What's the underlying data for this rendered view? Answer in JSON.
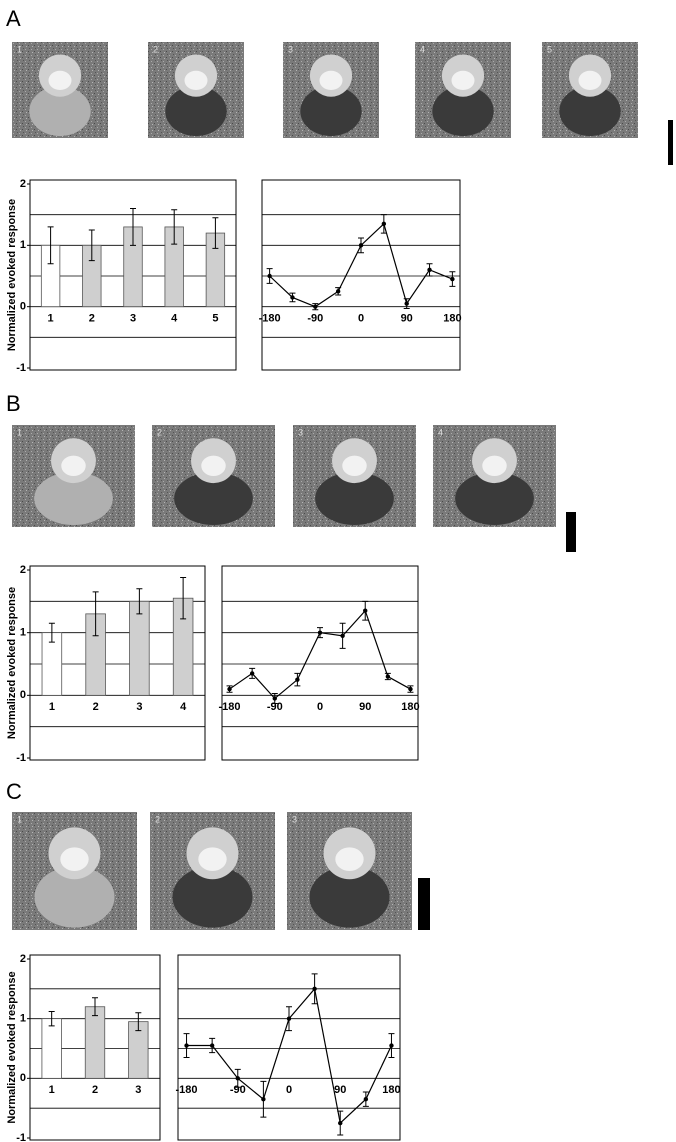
{
  "panels": [
    {
      "label": "A",
      "image_labels": [
        "1",
        "2",
        "3",
        "4",
        "5"
      ]
    },
    {
      "label": "B",
      "image_labels": [
        "1",
        "2",
        "3",
        "4"
      ]
    },
    {
      "label": "C",
      "image_labels": [
        "1",
        "2",
        "3"
      ]
    }
  ],
  "chart_data": [
    {
      "type": "bar",
      "ylabel": "Normalized evoked response",
      "categories": [
        "1",
        "2",
        "3",
        "4",
        "5"
      ],
      "values": [
        1,
        1,
        1.3,
        1.3,
        1.2
      ],
      "errors": [
        0.3,
        0.25,
        0.3,
        0.28,
        0.25
      ],
      "colors": [
        "#ffffff",
        "#cfcfcf",
        "#cfcfcf",
        "#cfcfcf",
        "#cfcfcf"
      ],
      "ylim": [
        -1,
        2
      ],
      "yticks": [
        -1,
        0,
        1,
        2
      ],
      "gridlines": [
        -0.5,
        0,
        0.5,
        1,
        1.5
      ]
    },
    {
      "type": "line",
      "x": [
        -180,
        -135,
        -90,
        -45,
        0,
        45,
        90,
        135,
        180
      ],
      "values": [
        0.5,
        0.15,
        0,
        0.25,
        1.0,
        1.35,
        0.05,
        0.6,
        0.45
      ],
      "errors": [
        0.12,
        0.07,
        0.05,
        0.06,
        0.12,
        0.15,
        0.08,
        0.1,
        0.12
      ],
      "color": "#000000",
      "xlim": [
        -195,
        195
      ],
      "xticks": [
        -180,
        -90,
        0,
        90,
        180
      ],
      "ylim": [
        -1,
        2
      ],
      "gridlines": [
        -0.5,
        0,
        0.5,
        1,
        1.5
      ]
    },
    {
      "type": "bar",
      "ylabel": "Normalized evoked response",
      "categories": [
        "1",
        "2",
        "3",
        "4"
      ],
      "values": [
        1,
        1.3,
        1.5,
        1.55
      ],
      "errors": [
        0.15,
        0.35,
        0.2,
        0.33
      ],
      "colors": [
        "#ffffff",
        "#cfcfcf",
        "#cfcfcf",
        "#cfcfcf"
      ],
      "ylim": [
        -1,
        2
      ],
      "yticks": [
        -1,
        0,
        1,
        2
      ],
      "gridlines": [
        -0.5,
        0,
        0.5,
        1,
        1.5
      ]
    },
    {
      "type": "line",
      "x": [
        -180,
        -135,
        -90,
        -45,
        0,
        45,
        90,
        135,
        180
      ],
      "values": [
        0.1,
        0.35,
        -0.05,
        0.25,
        1.0,
        0.95,
        1.35,
        0.3,
        0.1
      ],
      "errors": [
        0.05,
        0.08,
        0.08,
        0.1,
        0.08,
        0.2,
        0.15,
        0.05,
        0.05
      ],
      "color": "#000000",
      "xlim": [
        -195,
        195
      ],
      "xticks": [
        -180,
        -90,
        0,
        90,
        180
      ],
      "ylim": [
        -1,
        2
      ],
      "gridlines": [
        -0.5,
        0,
        0.5,
        1,
        1.5
      ]
    },
    {
      "type": "bar",
      "ylabel": "Normalized evoked response",
      "categories": [
        "1",
        "2",
        "3"
      ],
      "values": [
        1,
        1.2,
        0.95
      ],
      "errors": [
        0.12,
        0.15,
        0.15
      ],
      "colors": [
        "#ffffff",
        "#cfcfcf",
        "#cfcfcf"
      ],
      "ylim": [
        -1,
        2
      ],
      "yticks": [
        -1,
        0,
        1,
        2
      ],
      "gridlines": [
        -0.5,
        0,
        0.5,
        1,
        1.5
      ]
    },
    {
      "type": "line",
      "x": [
        -180,
        -135,
        -90,
        -45,
        0,
        45,
        90,
        135,
        180
      ],
      "values": [
        0.55,
        0.55,
        0,
        -0.35,
        1.0,
        1.5,
        -0.75,
        -0.35,
        0.55
      ],
      "errors": [
        0.2,
        0.12,
        0.15,
        0.3,
        0.2,
        0.25,
        0.2,
        0.12,
        0.2
      ],
      "color": "#000000",
      "xlim": [
        -195,
        195
      ],
      "xticks": [
        -180,
        -90,
        0,
        90,
        180
      ],
      "ylim": [
        -1,
        2
      ],
      "gridlines": [
        -0.5,
        0,
        0.5,
        1,
        1.5
      ]
    }
  ]
}
